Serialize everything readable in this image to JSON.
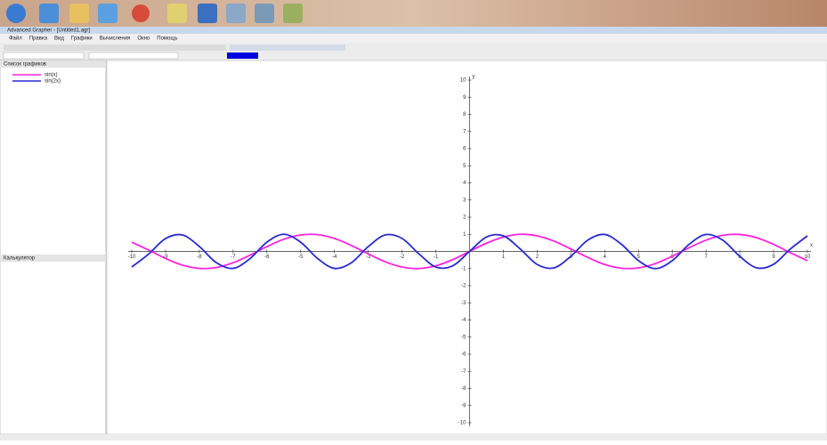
{
  "window": {
    "title": "Advanced Grapher - [Untitled1.agr]",
    "menu": [
      "Файл",
      "Правка",
      "Вид",
      "Графики",
      "Вычисления",
      "Окно",
      "Помощь"
    ]
  },
  "graph_list": {
    "title": "Список графиков"
  },
  "calculator": {
    "title": "Калькулятор"
  },
  "chart_data": {
    "type": "line",
    "x": [
      -10,
      -9.5,
      -9,
      -8.5,
      -8,
      -7.5,
      -7,
      -6.5,
      -6,
      -5.5,
      -5,
      -4.5,
      -4,
      -3.5,
      -3,
      -2.5,
      -2,
      -1.5,
      -1,
      -0.5,
      0,
      0.5,
      1,
      1.5,
      2,
      2.5,
      3,
      3.5,
      4,
      4.5,
      5,
      5.5,
      6,
      6.5,
      7,
      7.5,
      8,
      8.5,
      9,
      9.5,
      10
    ],
    "series": [
      {
        "name": "sin(x)",
        "color": "#ff22dd",
        "values": [
          0.54,
          0.08,
          -0.41,
          -0.8,
          -0.99,
          -0.94,
          -0.66,
          -0.22,
          0.28,
          0.71,
          0.96,
          0.98,
          0.76,
          0.35,
          -0.14,
          -0.6,
          -0.91,
          -1.0,
          -0.84,
          -0.48,
          0,
          0.48,
          0.84,
          1.0,
          0.91,
          0.6,
          0.14,
          -0.35,
          -0.76,
          -0.98,
          -0.96,
          -0.71,
          -0.28,
          0.22,
          0.66,
          0.94,
          0.99,
          0.8,
          0.41,
          -0.08,
          -0.54
        ]
      },
      {
        "name": "sin(2x)",
        "color": "#2a2ad0",
        "values": [
          -0.91,
          -0.15,
          0.75,
          0.96,
          0.29,
          -0.65,
          -0.99,
          -0.42,
          0.54,
          1.0,
          0.54,
          -0.41,
          -0.99,
          -0.66,
          0.28,
          0.96,
          0.76,
          -0.14,
          -0.91,
          -0.84,
          0,
          0.84,
          0.91,
          0.14,
          -0.76,
          -0.96,
          -0.28,
          0.66,
          0.99,
          0.41,
          -0.54,
          -1.0,
          -0.54,
          0.42,
          0.99,
          0.65,
          -0.29,
          -0.96,
          -0.75,
          0.15,
          0.91
        ]
      }
    ],
    "xlim": [
      -10,
      10
    ],
    "ylim": [
      -10,
      10
    ],
    "xticks": [
      -10,
      -9,
      -8,
      -7,
      -6,
      -5,
      -4,
      -3,
      -2,
      -1,
      1,
      2,
      3,
      4,
      5,
      6,
      7,
      8,
      9,
      10
    ],
    "yticks": [
      -10,
      -9,
      -8,
      -7,
      -6,
      -5,
      -4,
      -3,
      -2,
      -1,
      1,
      2,
      3,
      4,
      5,
      6,
      7,
      8,
      9,
      10
    ],
    "xlabel": "x",
    "ylabel": "y"
  }
}
